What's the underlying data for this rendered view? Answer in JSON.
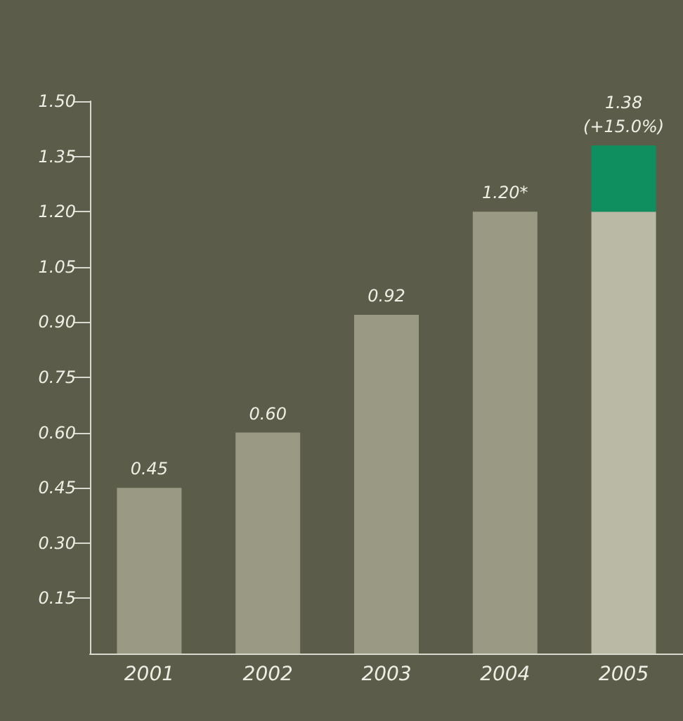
{
  "chart_data": {
    "type": "bar",
    "stacked": true,
    "categories": [
      "2001",
      "2002",
      "2003",
      "2004",
      "2005"
    ],
    "series": [
      {
        "colors": [
          "#9a9a84",
          "#9a9a84",
          "#9a9a84",
          "#9a9a84",
          "#b9b9a6"
        ],
        "values": [
          0.45,
          0.6,
          0.92,
          1.2,
          1.2
        ]
      },
      {
        "color": "#0f8f5f",
        "values": [
          null,
          null,
          null,
          null,
          0.18
        ]
      }
    ],
    "totals": [
      "0.45",
      "0.60",
      "0.92",
      "1.20*",
      "1.38\n(+15.0%)"
    ],
    "ylim": [
      0,
      1.5
    ],
    "yticks": [
      {
        "value": 0.15,
        "label": "0.15"
      },
      {
        "value": 0.3,
        "label": "0.30"
      },
      {
        "value": 0.45,
        "label": "0.45"
      },
      {
        "value": 0.6,
        "label": "0.60"
      },
      {
        "value": 0.75,
        "label": "0.75"
      },
      {
        "value": 0.9,
        "label": "0.90"
      },
      {
        "value": 1.05,
        "label": "1.05"
      },
      {
        "value": 1.2,
        "label": "1.20"
      },
      {
        "value": 1.35,
        "label": "1.35"
      },
      {
        "value": 1.5,
        "label": "1.50"
      }
    ]
  }
}
